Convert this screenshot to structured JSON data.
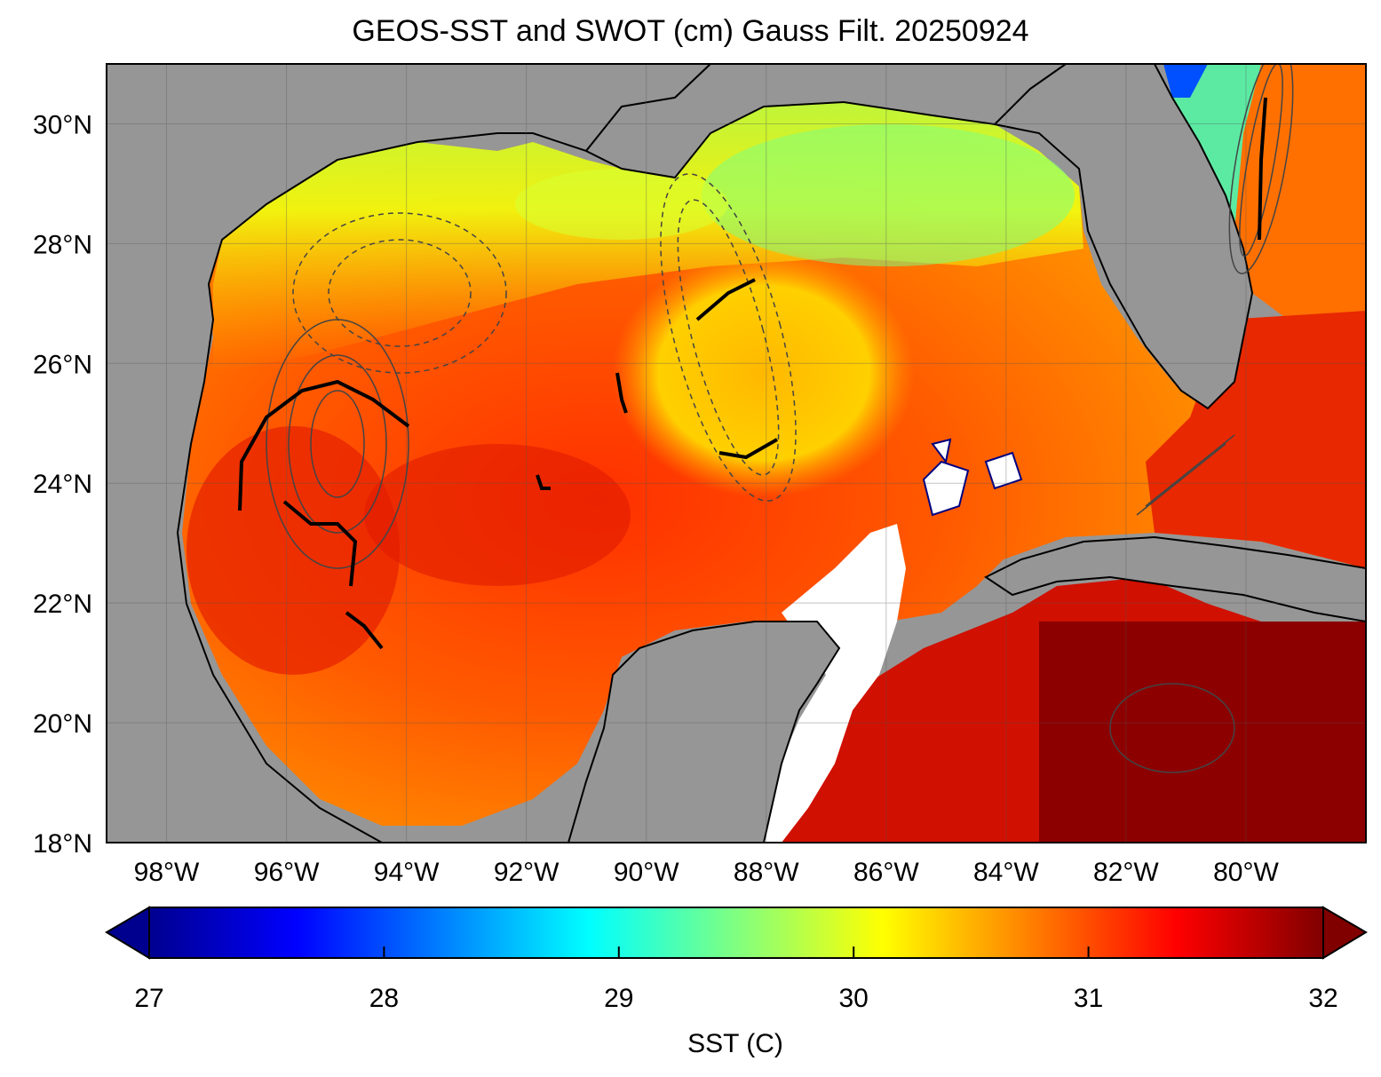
{
  "title": "GEOS-SST  and SWOT (cm) Gauss Filt. 20250924",
  "map": {
    "lat_ticks": [
      "30°N",
      "28°N",
      "26°N",
      "24°N",
      "22°N",
      "20°N",
      "18°N"
    ],
    "lon_ticks": [
      "98°W",
      "96°W",
      "94°W",
      "92°W",
      "90°W",
      "88°W",
      "86°W",
      "84°W",
      "82°W",
      "80°W"
    ],
    "lat_range": [
      18,
      31
    ],
    "lon_range": [
      -99,
      -78
    ],
    "land_color": "#969696",
    "nodata_color": "#ffffff"
  },
  "colorbar": {
    "label": "SST (C)",
    "ticks": [
      "27",
      "28",
      "29",
      "30",
      "31",
      "32"
    ],
    "range": [
      27,
      32
    ],
    "colormap": [
      "#00008f",
      "#0000ff",
      "#0080ff",
      "#00ffff",
      "#80ff80",
      "#ffff00",
      "#ff8000",
      "#ff0000",
      "#800000"
    ]
  }
}
